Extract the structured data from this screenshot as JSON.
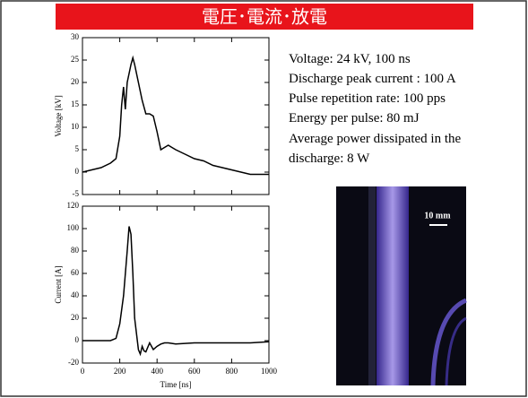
{
  "slide_title": "電圧･電流･放電",
  "info_lines": [
    "Voltage: 24 kV, 100 ns",
    "Discharge peak current : 100 A",
    "Pulse repetition rate: 100 pps",
    "Energy per pulse: 80 mJ",
    "Average power dissipated in the",
    "discharge: 8 W"
  ],
  "photo": {
    "scale_label": "10 mm"
  },
  "chart_data": [
    {
      "type": "line",
      "ylabel": "Voltage [kV]",
      "color": "#000000",
      "x": [
        0,
        50,
        100,
        150,
        180,
        200,
        210,
        220,
        230,
        240,
        250,
        260,
        270,
        280,
        300,
        320,
        340,
        360,
        380,
        400,
        420,
        440,
        460,
        480,
        500,
        550,
        600,
        650,
        700,
        750,
        800,
        850,
        900,
        950,
        1000
      ],
      "values": [
        0,
        0.5,
        1,
        2,
        3,
        8,
        15,
        19,
        14,
        20,
        22,
        24,
        25.5,
        24,
        20,
        16,
        13,
        13,
        12.5,
        9,
        5,
        5.5,
        6,
        5.5,
        5,
        4,
        3,
        2.5,
        1.5,
        1,
        0.5,
        0,
        -0.5,
        -0.5,
        -0.5
      ],
      "xlim": [
        0,
        1000
      ],
      "xticks": [
        0,
        200,
        400,
        600,
        800,
        1000
      ],
      "ylim": [
        -5,
        30
      ],
      "yticks": [
        -5,
        0,
        5,
        10,
        15,
        20,
        25,
        30
      ]
    },
    {
      "type": "line",
      "xlabel": "Time [ns]",
      "ylabel": "Current [A]",
      "color": "#000000",
      "x": [
        0,
        100,
        150,
        180,
        200,
        220,
        240,
        250,
        260,
        270,
        280,
        300,
        310,
        320,
        330,
        340,
        360,
        380,
        400,
        420,
        440,
        460,
        500,
        600,
        700,
        800,
        900,
        1000
      ],
      "values": [
        0,
        0,
        0,
        2,
        15,
        40,
        80,
        102,
        95,
        60,
        20,
        -8,
        -12,
        -5,
        -9,
        -10,
        -2,
        -8,
        -5,
        -3,
        -2,
        -2,
        -3,
        -2,
        -2,
        -2,
        -2,
        -1
      ],
      "xlim": [
        0,
        1000
      ],
      "xticks": [
        0,
        200,
        400,
        600,
        800,
        1000
      ],
      "ylim": [
        -20,
        120
      ],
      "yticks": [
        -20,
        0,
        20,
        40,
        60,
        80,
        100,
        120
      ]
    }
  ]
}
